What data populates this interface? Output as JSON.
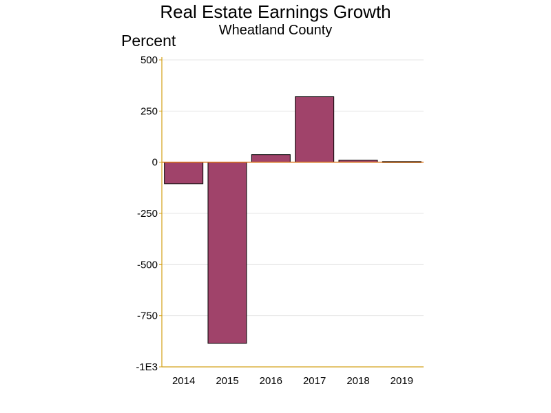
{
  "chart_data": {
    "type": "bar",
    "title": "Real Estate Earnings Growth",
    "subtitle": "Wheatland County",
    "xlabel": "",
    "ylabel": "Percent",
    "categories": [
      "2014",
      "2015",
      "2016",
      "2017",
      "2018",
      "2019"
    ],
    "values": [
      -105,
      -885,
      37,
      320,
      10,
      3
    ],
    "ylim": [
      -1000,
      500
    ],
    "yticks": [
      500,
      250,
      0,
      -250,
      -500,
      -750,
      -1000
    ],
    "ytick_labels": [
      "500",
      "250",
      "0",
      "-250",
      "-500",
      "-750",
      "-1E3"
    ],
    "grid": true,
    "colors": {
      "bar_fill": "#a0436a",
      "bar_stroke": "#000000",
      "axis": "#d4a017",
      "zero_line": "#e0781e",
      "grid": "#e4e4e4"
    }
  }
}
